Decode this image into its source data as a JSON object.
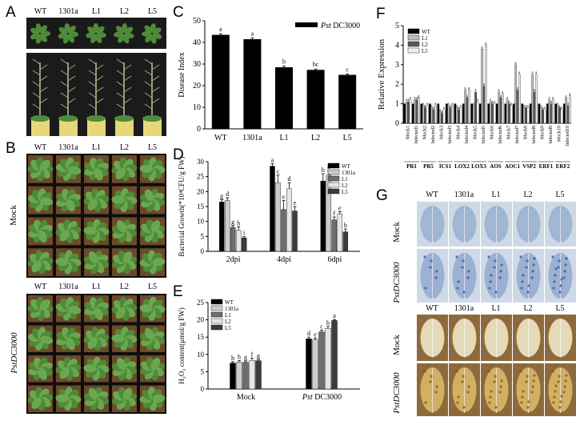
{
  "panels": {
    "A": "A",
    "B": "B",
    "C": "C",
    "D": "D",
    "E": "E",
    "F": "F",
    "G": "G"
  },
  "genotypes": [
    "WT",
    "1301a",
    "L1",
    "L2",
    "L5"
  ],
  "panel_b": {
    "mock_label": "Mock",
    "pst_label": "PstDC3000"
  },
  "panel_g": {
    "mock_label": "Mock",
    "pst_label": "PstDC3000"
  },
  "colors": {
    "black": "#000000",
    "gray1": "#c0c0c0",
    "gray2": "#6e6e6e",
    "gray3": "#bdbdbd",
    "gray4": "#3a3a3a",
    "plant_green": "#4f8a3a",
    "soil_brown": "#6b4a2a",
    "trypan_blue": "#8fa8c8",
    "dab_yellow": "#c9a34a"
  },
  "chart_data": [
    {
      "id": "C",
      "type": "bar",
      "ylabel": "Disease Index",
      "legend": [
        "Pst DC3000"
      ],
      "legend_position": "top-right",
      "categories": [
        "WT",
        "1301a",
        "L1",
        "L2",
        "L5"
      ],
      "values": [
        43.5,
        41.5,
        28.5,
        27.3,
        25
      ],
      "errors": [
        0.5,
        0.6,
        0.6,
        0.4,
        0.4
      ],
      "letters": [
        "a",
        "a",
        "b",
        "bc",
        "c"
      ],
      "ylim": [
        0,
        50
      ],
      "yticks": [
        0,
        10,
        20,
        30,
        40,
        50
      ]
    },
    {
      "id": "D",
      "type": "bar",
      "ylabel": "Bacterial Growth(*10⁴CFU/g FW)",
      "categories": [
        "2dpi",
        "4dpi",
        "6dpi"
      ],
      "series": [
        {
          "name": "WT",
          "values": [
            16.5,
            28.5,
            23.5
          ],
          "errors": [
            0.8,
            0.8,
            2.5
          ],
          "letters": [
            "g",
            "a",
            "b"
          ]
        },
        {
          "name": "1301a",
          "values": [
            17,
            23,
            25.5
          ],
          "errors": [
            0.9,
            2.5,
            1.5
          ],
          "letters": [
            "d",
            "c",
            "a"
          ]
        },
        {
          "name": "L1",
          "values": [
            8,
            14,
            10.5
          ],
          "errors": [
            0.6,
            3,
            1
          ],
          "letters": [
            "g",
            "e",
            "f"
          ]
        },
        {
          "name": "L2",
          "values": [
            7,
            21,
            12.5
          ],
          "errors": [
            1.2,
            2,
            0.8
          ],
          "letters": [
            "h",
            "d",
            "e"
          ]
        },
        {
          "name": "L5",
          "values": [
            4.5,
            13.5,
            6.5
          ],
          "errors": [
            0.4,
            1.5,
            1
          ],
          "letters": [
            "i",
            "e",
            "h"
          ]
        }
      ],
      "ylim": [
        0,
        30
      ],
      "yticks": [
        0,
        5,
        10,
        15,
        20,
        25,
        30
      ],
      "legend_position": "top-right"
    },
    {
      "id": "E",
      "type": "bar",
      "ylabel": "H₂O₂ content(μmol/g FW)",
      "categories": [
        "Mock",
        "Pst DC3000"
      ],
      "series": [
        {
          "name": "WT",
          "values": [
            7.5,
            14.5
          ],
          "errors": [
            0.4,
            0.5
          ],
          "letters": [
            "h",
            "d"
          ]
        },
        {
          "name": "1301a",
          "values": [
            7.8,
            14.2
          ],
          "errors": [
            0.4,
            0.5
          ],
          "letters": [
            "h",
            "e"
          ]
        },
        {
          "name": "L1",
          "values": [
            7.7,
            16.5
          ],
          "errors": [
            0.4,
            0.5
          ],
          "letters": [
            "g",
            "c"
          ]
        },
        {
          "name": "L2",
          "values": [
            8.3,
            17.5
          ],
          "errors": [
            0.6,
            0.6
          ],
          "letters": [
            "f",
            "b"
          ]
        },
        {
          "name": "L5",
          "values": [
            8.2,
            19.8
          ],
          "errors": [
            0.4,
            0.3
          ],
          "letters": [
            "g",
            "a"
          ]
        }
      ],
      "ylim": [
        0,
        25
      ],
      "yticks": [
        0,
        5,
        10,
        15,
        20,
        25
      ],
      "legend_position": "top-left"
    },
    {
      "id": "F",
      "type": "bar",
      "ylabel": "Relative Expression",
      "categories": [
        "Mock1",
        "Infected1",
        "Mock2",
        "Infected2",
        "Mock3",
        "Infected3",
        "Mock4",
        "Infected4",
        "Mock5",
        "Infected5",
        "Mock6",
        "Infected6",
        "Mock7",
        "Infected7",
        "Mock8",
        "Infected8",
        "Mock9",
        "Infected9",
        "Mock10",
        "Infected10"
      ],
      "genes": [
        "PR1",
        "PR5",
        "ICS1",
        "LOX2",
        "LOX3",
        "AOS",
        "AOC1",
        "VSP2",
        "ERF1",
        "ERF2"
      ],
      "series": [
        {
          "name": "WT",
          "values": [
            1,
            1,
            1,
            1,
            1,
            1,
            1,
            1,
            1,
            1,
            1,
            1,
            1,
            1,
            1,
            1,
            1,
            1,
            1,
            1
          ]
        },
        {
          "name": "L1",
          "values": [
            1.1,
            1.2,
            0.9,
            0.8,
            0.6,
            0.9,
            0.8,
            1.7,
            0.9,
            3.8,
            1.1,
            1.6,
            1.2,
            3.0,
            0.8,
            2.5,
            0.8,
            1.2,
            0.9,
            1.3
          ]
        },
        {
          "name": "L2",
          "values": [
            1.1,
            1.2,
            0.8,
            0.7,
            0.5,
            0.8,
            0.7,
            1.3,
            1.6,
            1.9,
            1.0,
            1.3,
            1.0,
            1.7,
            0.8,
            1.6,
            0.7,
            1.0,
            0.8,
            0.9
          ]
        },
        {
          "name": "L5",
          "values": [
            1.2,
            1.3,
            0.9,
            0.9,
            0.7,
            0.9,
            0.8,
            1.7,
            1.1,
            4.0,
            1.0,
            1.5,
            0.9,
            2.5,
            0.8,
            2.5,
            0.7,
            1.2,
            0.7,
            1.4
          ]
        }
      ],
      "ylim": [
        0,
        5
      ],
      "yticks": [
        0,
        1,
        2,
        3,
        4,
        5
      ],
      "legend_position": "top-left"
    }
  ]
}
